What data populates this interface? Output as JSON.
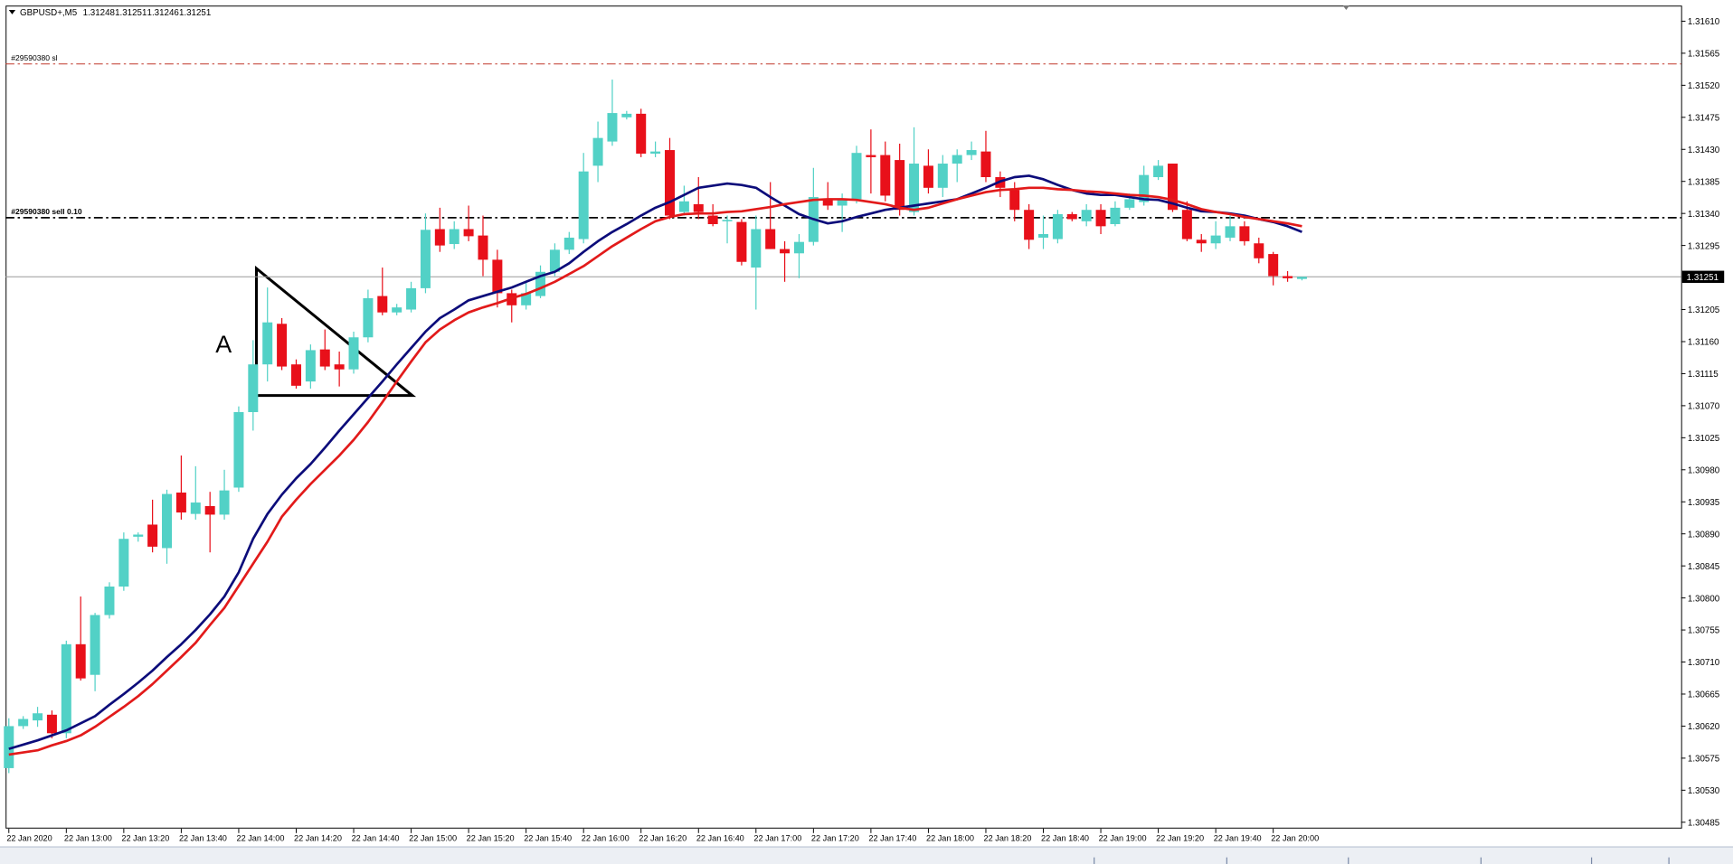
{
  "chart_data": {
    "type": "candlestick",
    "title": "GBPUSD+,M5",
    "categories": [
      "22 Jan 2020",
      null,
      null,
      null,
      "22 Jan 13:00",
      null,
      null,
      null,
      "22 Jan 13:20",
      null,
      null,
      null,
      "22 Jan 13:40",
      null,
      null,
      null,
      "22 Jan 14:00",
      null,
      null,
      null,
      "22 Jan 14:20",
      null,
      null,
      null,
      "22 Jan 14:40",
      null,
      null,
      null,
      "22 Jan 15:00",
      null,
      null,
      null,
      "22 Jan 15:20",
      null,
      null,
      null,
      "22 Jan 15:40",
      null,
      null,
      null,
      "22 Jan 16:00",
      null,
      null,
      null,
      "22 Jan 16:20",
      null,
      null,
      null,
      "22 Jan 16:40",
      null,
      null,
      null,
      "22 Jan 17:00",
      null,
      null,
      null,
      "22 Jan 17:20",
      null,
      null,
      null,
      "22 Jan 17:40",
      null,
      null,
      null,
      "22 Jan 18:00",
      null,
      null,
      null,
      "22 Jan 18:20",
      null,
      null,
      null,
      "22 Jan 18:40",
      null,
      null,
      null,
      "22 Jan 19:00",
      null,
      null,
      null,
      "22 Jan 19:20",
      null,
      null,
      null,
      "22 Jan 19:40",
      null,
      null,
      null,
      "22 Jan 20:00",
      null,
      null
    ],
    "open": [
      1.30561,
      1.3062,
      1.30628,
      1.30636,
      1.3061,
      1.30735,
      1.30692,
      1.30776,
      1.30816,
      1.30886,
      1.30903,
      1.3087,
      1.30948,
      1.30918,
      1.30929,
      1.30917,
      1.30955,
      1.31061,
      1.31128,
      1.31185,
      1.31128,
      1.31104,
      1.31149,
      1.31128,
      1.31121,
      1.31166,
      1.31224,
      1.31201,
      1.31205,
      1.31235,
      1.31318,
      1.31297,
      1.31318,
      1.31309,
      1.31275,
      1.31228,
      1.31211,
      1.31224,
      1.31258,
      1.31289,
      1.31304,
      1.31407,
      1.31441,
      1.31475,
      1.3148,
      1.31424,
      1.31429,
      1.31342,
      1.31353,
      1.31337,
      1.31329,
      1.31328,
      1.31264,
      1.31318,
      1.3129,
      1.31284,
      1.313,
      1.3136,
      1.31351,
      1.3136,
      1.31422,
      1.31422,
      1.31415,
      1.31342,
      1.31407,
      1.31376,
      1.3141,
      1.31422,
      1.31427,
      1.31391,
      1.31373,
      1.31345,
      1.31306,
      1.31304,
      1.31339,
      1.31329,
      1.31345,
      1.31325,
      1.31348,
      1.31356,
      1.31391,
      1.3141,
      1.31345,
      1.31303,
      1.31298,
      1.31306,
      1.31322,
      1.31298,
      1.31283,
      1.31252,
      1.31248
    ],
    "high": [
      1.30631,
      1.30634,
      1.30647,
      1.30642,
      1.3074,
      1.30802,
      1.30779,
      1.30822,
      1.30892,
      1.30892,
      1.30938,
      1.30952,
      1.31,
      1.30985,
      1.30949,
      1.3098,
      1.31069,
      1.31162,
      1.31236,
      1.31193,
      1.31135,
      1.31156,
      1.31177,
      1.31146,
      1.31174,
      1.31233,
      1.31264,
      1.31213,
      1.31244,
      1.3134,
      1.31348,
      1.31329,
      1.31351,
      1.31337,
      1.31289,
      1.31233,
      1.31244,
      1.31267,
      1.31298,
      1.31314,
      1.31425,
      1.31469,
      1.31528,
      1.31484,
      1.31487,
      1.31441,
      1.31446,
      1.31379,
      1.31391,
      1.31353,
      1.31337,
      1.31332,
      1.31337,
      1.31384,
      1.31301,
      1.31311,
      1.31404,
      1.31384,
      1.31368,
      1.31435,
      1.31458,
      1.31441,
      1.31438,
      1.31461,
      1.3143,
      1.31422,
      1.3143,
      1.31441,
      1.31456,
      1.31399,
      1.31384,
      1.31353,
      1.31337,
      1.31345,
      1.31342,
      1.31353,
      1.31353,
      1.31357,
      1.31368,
      1.31407,
      1.31415,
      1.3141,
      1.31357,
      1.31311,
      1.31329,
      1.31337,
      1.31329,
      1.31306,
      1.31286,
      1.31259,
      1.31251
    ],
    "low": [
      1.30554,
      1.30616,
      1.30619,
      1.30603,
      1.30603,
      1.30684,
      1.30669,
      1.30771,
      1.3081,
      1.30879,
      1.30864,
      1.30848,
      1.3091,
      1.3091,
      1.30864,
      1.3091,
      1.30949,
      1.31035,
      1.31104,
      1.3112,
      1.31094,
      1.31094,
      1.3112,
      1.31097,
      1.31115,
      1.31159,
      1.31197,
      1.31197,
      1.31201,
      1.31228,
      1.31286,
      1.3129,
      1.31301,
      1.31252,
      1.31208,
      1.31187,
      1.31205,
      1.31221,
      1.31252,
      1.31283,
      1.31298,
      1.31384,
      1.31435,
      1.31472,
      1.31419,
      1.31419,
      1.31332,
      1.31337,
      1.31332,
      1.31322,
      1.31298,
      1.31267,
      1.31205,
      1.3129,
      1.31244,
      1.31249,
      1.31295,
      1.31345,
      1.31314,
      1.31354,
      1.31368,
      1.31357,
      1.31337,
      1.31337,
      1.31368,
      1.31363,
      1.31384,
      1.31415,
      1.31384,
      1.31363,
      1.31329,
      1.3129,
      1.3129,
      1.31298,
      1.31329,
      1.31322,
      1.31311,
      1.31322,
      1.31345,
      1.31351,
      1.31387,
      1.31342,
      1.31301,
      1.31286,
      1.3129,
      1.31301,
      1.31295,
      1.3127,
      1.31239,
      1.31244,
      1.31246
    ],
    "close": [
      1.3062,
      1.3063,
      1.30638,
      1.3061,
      1.30735,
      1.30687,
      1.30776,
      1.30816,
      1.30883,
      1.30889,
      1.30872,
      1.30946,
      1.3092,
      1.30934,
      1.30917,
      1.30951,
      1.31061,
      1.31128,
      1.31187,
      1.31125,
      1.31098,
      1.31148,
      1.31125,
      1.31121,
      1.31166,
      1.31221,
      1.31201,
      1.31208,
      1.31235,
      1.31317,
      1.31295,
      1.31318,
      1.31308,
      1.31275,
      1.31228,
      1.31211,
      1.31228,
      1.31258,
      1.31289,
      1.31306,
      1.31399,
      1.31446,
      1.31481,
      1.3148,
      1.31424,
      1.31427,
      1.31337,
      1.31357,
      1.31342,
      1.31325,
      1.31331,
      1.31272,
      1.31318,
      1.3129,
      1.31284,
      1.313,
      1.31363,
      1.31351,
      1.3136,
      1.31425,
      1.31419,
      1.31365,
      1.31345,
      1.3141,
      1.31376,
      1.3141,
      1.31422,
      1.31429,
      1.31391,
      1.31376,
      1.31345,
      1.31303,
      1.31311,
      1.31339,
      1.31332,
      1.31345,
      1.31322,
      1.31348,
      1.3136,
      1.31394,
      1.31407,
      1.31345,
      1.31304,
      1.31298,
      1.31309,
      1.31322,
      1.31301,
      1.31277,
      1.31252,
      1.31249,
      1.31251
    ],
    "up_color": "#52d1c6",
    "down_color": "#e8101a",
    "series": [
      {
        "color": "#0c0c7a",
        "values": [
          1.30588,
          1.30594,
          1.306,
          1.30607,
          1.30614,
          1.30624,
          1.30634,
          1.3065,
          1.30665,
          1.30681,
          1.30698,
          1.30717,
          1.30735,
          1.30755,
          1.30777,
          1.30802,
          1.30836,
          1.30883,
          1.30918,
          1.30945,
          1.30968,
          1.30988,
          1.31011,
          1.31035,
          1.31058,
          1.31081,
          1.31104,
          1.31128,
          1.31151,
          1.31174,
          1.31193,
          1.31205,
          1.31218,
          1.31224,
          1.3123,
          1.31236,
          1.31244,
          1.31252,
          1.31258,
          1.3127,
          1.31286,
          1.31301,
          1.31314,
          1.31325,
          1.31337,
          1.31348,
          1.31356,
          1.31366,
          1.31376,
          1.31379,
          1.31382,
          1.3138,
          1.31376,
          1.31363,
          1.31351,
          1.31339,
          1.31332,
          1.31326,
          1.31329,
          1.31335,
          1.3134,
          1.31345,
          1.31348,
          1.31351,
          1.31354,
          1.31357,
          1.3136,
          1.31368,
          1.31376,
          1.31385,
          1.31391,
          1.31393,
          1.31388,
          1.3138,
          1.31373,
          1.31368,
          1.31366,
          1.31366,
          1.31363,
          1.3136,
          1.31359,
          1.31354,
          1.31348,
          1.31343,
          1.31342,
          1.3134,
          1.31337,
          1.31332,
          1.31328,
          1.31322,
          1.31314
        ]
      },
      {
        "color": "#e21a1a",
        "values": [
          1.3058,
          1.30583,
          1.30586,
          1.30593,
          1.30599,
          1.30607,
          1.30619,
          1.30633,
          1.30647,
          1.30662,
          1.30679,
          1.30698,
          1.30717,
          1.30737,
          1.30762,
          1.30786,
          1.30817,
          1.30848,
          1.30879,
          1.30914,
          1.30938,
          1.3096,
          1.3098,
          1.31,
          1.31022,
          1.31047,
          1.31075,
          1.31104,
          1.31132,
          1.31159,
          1.31177,
          1.3119,
          1.31201,
          1.31208,
          1.31214,
          1.31221,
          1.31227,
          1.31235,
          1.31244,
          1.31255,
          1.31266,
          1.3128,
          1.31294,
          1.31306,
          1.31318,
          1.31329,
          1.31335,
          1.31339,
          1.3134,
          1.3134,
          1.31342,
          1.31343,
          1.31346,
          1.31349,
          1.31353,
          1.31356,
          1.31359,
          1.3136,
          1.3136,
          1.31359,
          1.31356,
          1.31353,
          1.31348,
          1.31345,
          1.31348,
          1.31354,
          1.3136,
          1.31365,
          1.3137,
          1.31373,
          1.31374,
          1.31376,
          1.31376,
          1.31374,
          1.31373,
          1.31371,
          1.3137,
          1.31368,
          1.31366,
          1.31365,
          1.31363,
          1.31359,
          1.31353,
          1.31346,
          1.31342,
          1.31339,
          1.31335,
          1.31332,
          1.31329,
          1.31326,
          1.31322
        ]
      }
    ],
    "ylim": [
      1.30476,
      1.31632
    ],
    "yticks": [
      {
        "value": 1.3161,
        "label": "1.31610"
      },
      1.31565,
      {
        "value": 1.3152,
        "label": "1.31520"
      },
      1.31475,
      {
        "value": 1.3143,
        "label": "1.31430"
      },
      1.31385,
      {
        "value": 1.3134,
        "label": "1.31340"
      },
      1.31295,
      1.31205,
      {
        "value": 1.3116,
        "label": "1.31160"
      },
      1.31115,
      {
        "value": 1.3107,
        "label": "1.31070"
      },
      1.31025,
      {
        "value": 1.3098,
        "label": "1.30980"
      },
      1.30935,
      {
        "value": 1.3089,
        "label": "1.30890"
      },
      1.30845,
      {
        "value": 1.308,
        "label": "1.30800"
      },
      1.30755,
      {
        "value": 1.3071,
        "label": "1.30710"
      },
      1.30665,
      {
        "value": 1.3062,
        "label": "1.30620"
      },
      1.30575,
      {
        "value": 1.3053,
        "label": "1.30530"
      },
      1.30485
    ],
    "hlines": [
      {
        "label": "#29590380 sl",
        "value": 1.3155,
        "color": "#c0392b"
      },
      {
        "label": "#29590380 sell 0.10",
        "value": 1.31334,
        "color": "#000000"
      }
    ],
    "last_price": 1.31251,
    "annotations": [
      {
        "text": "A"
      }
    ]
  }
}
